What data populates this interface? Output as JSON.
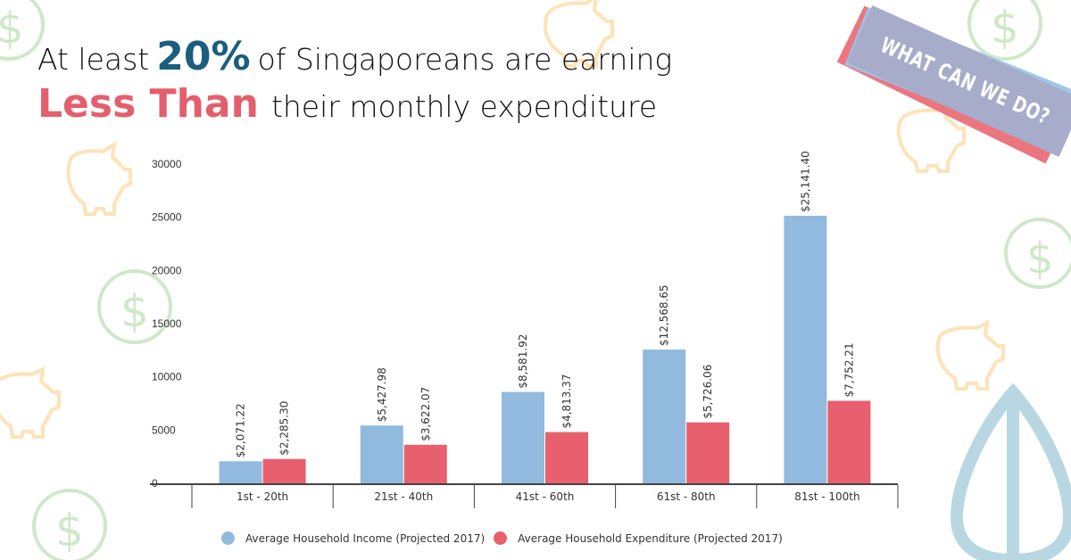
{
  "headline": {
    "line1_prefix": "At least",
    "line1_highlight": "20%",
    "line1_suffix": "of Singaporeans are earning",
    "line2_highlight": "Less Than",
    "line2_suffix": "their monthly expenditure"
  },
  "banner": {
    "label": "WHAT CAN WE DO?"
  },
  "colors": {
    "income": "#92badf",
    "expenditure": "#e85f6e",
    "highlight_blue": "#1b5e7d",
    "highlight_red": "#e45f6d"
  },
  "decorations": [
    "dollar-coin-icon",
    "piggy-bank-icon",
    "leaf-logo-icon"
  ],
  "chart_data": {
    "type": "bar",
    "title": "",
    "xlabel": "",
    "ylabel": "",
    "ylim": [
      0,
      30000
    ],
    "yticks": [
      0,
      5000,
      10000,
      15000,
      20000,
      25000,
      30000
    ],
    "ytick_labels": [
      "0",
      "5000",
      "10000",
      "15000",
      "20000",
      "25000",
      "30000"
    ],
    "categories": [
      "1st - 20th",
      "21st - 40th",
      "41st - 60th",
      "61st - 80th",
      "81st - 100th"
    ],
    "series": [
      {
        "name": "Average Household Income (Projected 2017)",
        "values": [
          2071.22,
          5427.98,
          8581.92,
          12568.65,
          25141.4
        ],
        "labels": [
          "$2,071.22",
          "$5,427.98",
          "$8,581.92",
          "$12,568.65",
          "$25,141.40"
        ]
      },
      {
        "name": "Average Household Expenditure (Projected 2017)",
        "values": [
          2285.3,
          3622.07,
          4813.37,
          5726.06,
          7752.21
        ],
        "labels": [
          "$2,285.30",
          "$3,622.07",
          "$4,813.37",
          "$5,726.06",
          "$7,752.21"
        ]
      }
    ],
    "grid": false,
    "legend": "bottom"
  }
}
